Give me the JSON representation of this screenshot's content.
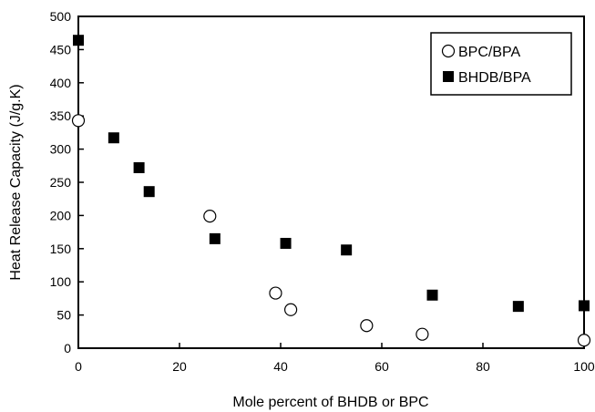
{
  "chart_data": {
    "type": "scatter",
    "xlabel": "Mole percent of BHDB or BPC",
    "ylabel": "Heat Release Capacity (J/g.K)",
    "xlim": [
      0,
      100
    ],
    "ylim": [
      0,
      500
    ],
    "x_ticks": [
      0,
      20,
      40,
      60,
      80,
      100
    ],
    "y_ticks": [
      0,
      50,
      100,
      150,
      200,
      250,
      300,
      350,
      400,
      450,
      500
    ],
    "grid": false,
    "legend": "top-right",
    "series": [
      {
        "name": "BPC/BPA",
        "marker": "open-circle",
        "color": "#000000",
        "points": [
          [
            0,
            343
          ],
          [
            26,
            199
          ],
          [
            39,
            83
          ],
          [
            42,
            58
          ],
          [
            57,
            34
          ],
          [
            68,
            21
          ],
          [
            100,
            12
          ]
        ]
      },
      {
        "name": "BHDB/BPA",
        "marker": "filled-square",
        "color": "#000000",
        "points": [
          [
            0,
            464
          ],
          [
            7,
            317
          ],
          [
            12,
            272
          ],
          [
            14,
            236
          ],
          [
            27,
            165
          ],
          [
            41,
            158
          ],
          [
            53,
            148
          ],
          [
            70,
            80
          ],
          [
            87,
            63
          ],
          [
            100,
            64
          ]
        ]
      }
    ]
  }
}
